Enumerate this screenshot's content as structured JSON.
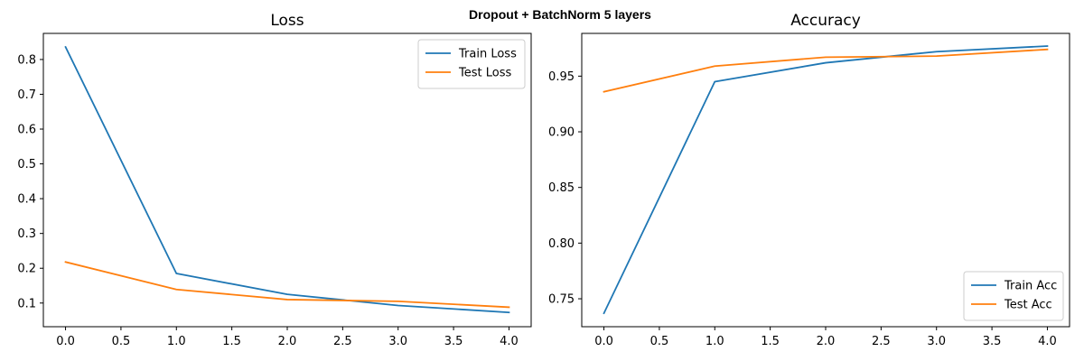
{
  "figure": {
    "suptitle": "Dropout + BatchNorm 5 layers"
  },
  "chart_data": [
    {
      "type": "line",
      "title": "Loss",
      "xlabel": "",
      "ylabel": "",
      "x": [
        0,
        1,
        2,
        3,
        4
      ],
      "xlim": [
        -0.2,
        4.2
      ],
      "ylim": [
        0.032,
        0.875
      ],
      "xticks": [
        0.0,
        0.5,
        1.0,
        1.5,
        2.0,
        2.5,
        3.0,
        3.5,
        4.0
      ],
      "xtick_labels": [
        "0.0",
        "0.5",
        "1.0",
        "1.5",
        "2.0",
        "2.5",
        "3.0",
        "3.5",
        "4.0"
      ],
      "yticks": [
        0.1,
        0.2,
        0.3,
        0.4,
        0.5,
        0.6,
        0.7,
        0.8
      ],
      "ytick_labels": [
        "0.1",
        "0.2",
        "0.3",
        "0.4",
        "0.5",
        "0.6",
        "0.7",
        "0.8"
      ],
      "grid": false,
      "legend_position": "upper right",
      "series": [
        {
          "name": "Train Loss",
          "color": "#1f77b4",
          "values": [
            0.836,
            0.185,
            0.125,
            0.093,
            0.073
          ]
        },
        {
          "name": "Test Loss",
          "color": "#ff7f0e",
          "values": [
            0.218,
            0.139,
            0.11,
            0.105,
            0.088
          ]
        }
      ]
    },
    {
      "type": "line",
      "title": "Accuracy",
      "xlabel": "",
      "ylabel": "",
      "x": [
        0,
        1,
        2,
        3,
        4
      ],
      "xlim": [
        -0.2,
        4.2
      ],
      "ylim": [
        0.7249,
        0.9884
      ],
      "xticks": [
        0.0,
        0.5,
        1.0,
        1.5,
        2.0,
        2.5,
        3.0,
        3.5,
        4.0
      ],
      "xtick_labels": [
        "0.0",
        "0.5",
        "1.0",
        "1.5",
        "2.0",
        "2.5",
        "3.0",
        "3.5",
        "4.0"
      ],
      "yticks": [
        0.75,
        0.8,
        0.85,
        0.9,
        0.95
      ],
      "ytick_labels": [
        "0.75",
        "0.80",
        "0.85",
        "0.90",
        "0.95"
      ],
      "grid": false,
      "legend_position": "lower right",
      "series": [
        {
          "name": "Train Acc",
          "color": "#1f77b4",
          "values": [
            0.737,
            0.945,
            0.962,
            0.972,
            0.977
          ]
        },
        {
          "name": "Test Acc",
          "color": "#ff7f0e",
          "values": [
            0.936,
            0.959,
            0.967,
            0.968,
            0.974
          ]
        }
      ]
    }
  ]
}
